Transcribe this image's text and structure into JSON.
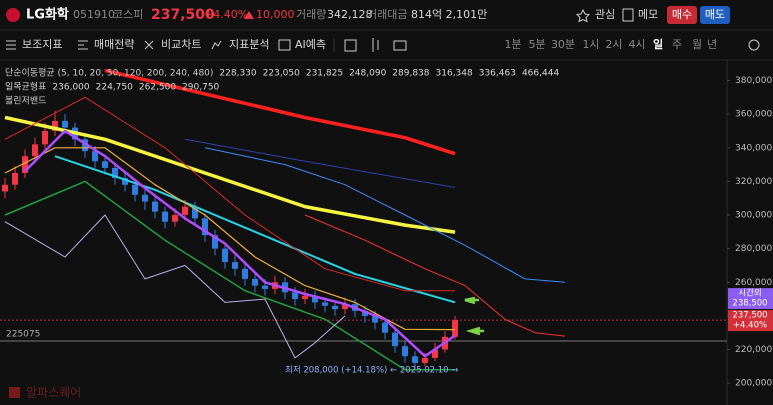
{
  "header": {
    "name": "LG화학",
    "code": "051910",
    "market": "코스피",
    "price": "237,500",
    "change_pct": "+4.40%",
    "change": "10,000",
    "volume_label": "거래량",
    "volume": "342,128",
    "amount_label": "거래대금",
    "amount": "814억 2,101만",
    "watch": "관심",
    "memo": "메모",
    "buy": "매수",
    "sell": "매도"
  },
  "toolbar": {
    "tools": [
      "보조지표",
      "매매전략",
      "비교차트",
      "지표분석",
      "AI예측"
    ],
    "timeframes": [
      "1분",
      "5분",
      "30분",
      "1시",
      "2시",
      "4시",
      "일",
      "주",
      "월",
      "년"
    ],
    "active": "일"
  },
  "chart_data": {
    "type": "candlestick",
    "legend": [
      {
        "label": "단순이동평균 (5, 10, 20, 50, 120, 200, 240, 480)",
        "items": [
          {
            "text": "228,330",
            "color": "#b04cff"
          },
          {
            "text": "223,050",
            "color": "#ff6a3d"
          },
          {
            "text": "231,825",
            "color": "#f0b040"
          },
          {
            "text": "248,090",
            "color": "#27d3e6"
          },
          {
            "text": "289,838",
            "color": "#f5f542"
          },
          {
            "text": "316,348",
            "color": "#3c50c8"
          },
          {
            "text": "336,463",
            "color": "#ff2a2a"
          },
          {
            "text": "466,444",
            "color": "#c8c8c8"
          }
        ]
      },
      {
        "label": "일목균형표",
        "items": [
          {
            "text": "236,000",
            "color": "#f0b040"
          },
          {
            "text": "224,750",
            "color": "#27d3e6"
          },
          {
            "text": "262,500",
            "color": "#ff4040"
          },
          {
            "text": "290,750",
            "color": "#3c8cff"
          }
        ]
      },
      {
        "label": "볼린저밴드",
        "items": []
      }
    ],
    "x": [
      0,
      1,
      2,
      3,
      4,
      5,
      6,
      7,
      8,
      9,
      10,
      11,
      12,
      13,
      14,
      15,
      16,
      17,
      18,
      19,
      20,
      21,
      22,
      23,
      24,
      25,
      26,
      27,
      28,
      29,
      30,
      31,
      32,
      33,
      34,
      35,
      36,
      37,
      38,
      39,
      40,
      41,
      42,
      43,
      44,
      45
    ],
    "open": [
      314000,
      318000,
      325000,
      335000,
      342000,
      350000,
      356000,
      352000,
      345000,
      338000,
      332000,
      328000,
      322000,
      318000,
      312000,
      308000,
      302000,
      296000,
      300000,
      305000,
      298000,
      288000,
      280000,
      272000,
      268000,
      262000,
      258000,
      256000,
      260000,
      254000,
      250000,
      252000,
      248000,
      246000,
      244000,
      247000,
      243000,
      240000,
      236000,
      230000,
      222000,
      216000,
      212000,
      215000,
      220000,
      227500
    ],
    "high": [
      322000,
      329000,
      339000,
      346000,
      355000,
      362000,
      360000,
      355000,
      348000,
      341000,
      336000,
      331000,
      325000,
      321000,
      315000,
      311000,
      305000,
      304000,
      309000,
      308000,
      301000,
      291000,
      284000,
      276000,
      271000,
      266000,
      262000,
      264000,
      263000,
      257000,
      256000,
      255000,
      251000,
      249000,
      251000,
      250000,
      246000,
      243000,
      239000,
      233000,
      225000,
      219000,
      218000,
      224000,
      231000,
      240000
    ],
    "low": [
      310000,
      315000,
      322000,
      331000,
      339000,
      347000,
      348000,
      341000,
      334000,
      328000,
      324000,
      318000,
      314000,
      308000,
      303000,
      298000,
      292000,
      293000,
      297000,
      294000,
      284000,
      276000,
      268000,
      264000,
      258000,
      254000,
      252000,
      253000,
      250000,
      246000,
      247000,
      244000,
      242000,
      240000,
      241000,
      239000,
      236000,
      232000,
      226000,
      218000,
      212000,
      208000,
      210000,
      213000,
      218000,
      226000
    ],
    "close": [
      318000,
      325000,
      335000,
      342000,
      350000,
      356000,
      352000,
      345000,
      338000,
      332000,
      328000,
      322000,
      318000,
      312000,
      308000,
      302000,
      296000,
      300000,
      305000,
      298000,
      288000,
      280000,
      272000,
      268000,
      262000,
      258000,
      256000,
      260000,
      254000,
      250000,
      252000,
      248000,
      246000,
      244000,
      247000,
      243000,
      240000,
      236000,
      230000,
      222000,
      216000,
      212000,
      215000,
      220000,
      227500,
      237500
    ],
    "up_color": "#f23645",
    "down_color": "#2f7de1",
    "lines": [
      {
        "color": "#ff2020",
        "width": 3.5,
        "x": [
          10,
          20,
          30,
          40,
          45
        ],
        "values": [
          386000,
          372000,
          358000,
          346000,
          336463
        ]
      },
      {
        "color": "#3040b0",
        "width": 1,
        "x": [
          18,
          30,
          45
        ],
        "values": [
          345000,
          332000,
          316348
        ]
      },
      {
        "color": "#f5f542",
        "width": 3.5,
        "x": [
          0,
          10,
          20,
          30,
          40,
          45
        ],
        "values": [
          358000,
          345000,
          325000,
          305000,
          294000,
          289838
        ]
      },
      {
        "color": "#27d3e6",
        "width": 2,
        "x": [
          5,
          15,
          25,
          35,
          45
        ],
        "values": [
          335000,
          315000,
          290000,
          265000,
          248090
        ]
      },
      {
        "color": "#f0b040",
        "width": 1.2,
        "x": [
          0,
          5,
          10,
          15,
          20,
          25,
          30,
          35,
          40,
          45
        ],
        "values": [
          325000,
          340000,
          340000,
          318000,
          300000,
          275000,
          258000,
          248000,
          232000,
          231825
        ]
      },
      {
        "color": "#b04cff",
        "width": 2.5,
        "x": [
          2,
          6,
          10,
          14,
          18,
          22,
          26,
          30,
          34,
          38,
          42,
          45
        ],
        "values": [
          326000,
          350000,
          335000,
          316000,
          298000,
          283000,
          260000,
          253000,
          247000,
          238000,
          216000,
          228330
        ]
      },
      {
        "color": "#e02828",
        "width": 1,
        "x": [
          0,
          8,
          16,
          24,
          32,
          40,
          45
        ],
        "values": [
          345000,
          370000,
          340000,
          300000,
          268000,
          255000,
          255000
        ]
      },
      {
        "color": "#22a040",
        "width": 1.5,
        "x": [
          0,
          8,
          16,
          24,
          32,
          40,
          45
        ],
        "values": [
          300000,
          320000,
          285000,
          255000,
          238000,
          208000,
          208000
        ]
      },
      {
        "color": "#3c8cff",
        "width": 1,
        "x": [
          20,
          28,
          34,
          40,
          46,
          52,
          56
        ],
        "values": [
          340000,
          330000,
          318000,
          300000,
          282000,
          262000,
          260000
        ]
      },
      {
        "color": "#ff3030",
        "width": 1,
        "x": [
          30,
          36,
          42,
          46,
          50,
          53,
          56
        ],
        "values": [
          300000,
          285000,
          268000,
          258000,
          238000,
          230000,
          228000
        ]
      },
      {
        "color": "#b8b0e8",
        "width": 1,
        "x": [
          0,
          6,
          10,
          14,
          18,
          22,
          26,
          29,
          31,
          34
        ],
        "values": [
          296000,
          275000,
          300000,
          262000,
          270000,
          248000,
          250000,
          215000,
          224000,
          240000
        ]
      }
    ],
    "xlim": [
      -0.5,
      72.2
    ],
    "ylim": [
      187000,
      391000
    ],
    "yticks": [
      {
        "value": 200000,
        "label": "200,000"
      },
      {
        "value": 220000,
        "label": "220,000"
      },
      {
        "value": 240000,
        "label": "240,000"
      },
      {
        "value": 260000,
        "label": "260,000"
      },
      {
        "value": 280000,
        "label": "280,000"
      },
      {
        "value": 300000,
        "label": "300,000"
      },
      {
        "value": 320000,
        "label": "320,000"
      },
      {
        "value": 340000,
        "label": "340,000"
      },
      {
        "value": 360000,
        "label": "360,000"
      },
      {
        "value": 380000,
        "label": "380,000"
      }
    ],
    "ref_line": 225075,
    "low_note": "최저 208,000 (+14.18%) ← 2025.02.10 →",
    "after_hours": {
      "label": "시간외",
      "value": {
        "value": 238500,
        "label": "238,500"
      }
    },
    "current": {
      "value": {
        "value": 237500,
        "label": "237,500"
      },
      "change": "+4.40%"
    },
    "watermark": "알파스퀘어"
  }
}
